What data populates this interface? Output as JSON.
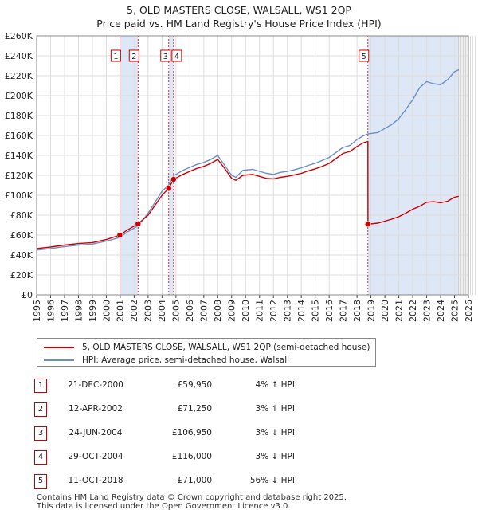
{
  "title": {
    "line1": "5, OLD MASTERS CLOSE, WALSALL, WS1 2QP",
    "line2": "Price paid vs. HM Land Registry's House Price Index (HPI)"
  },
  "legend": {
    "property_label": "5, OLD MASTERS CLOSE, WALSALL, WS1 2QP (semi-detached house)",
    "hpi_label": "HPI: Average price, semi-detached house, Walsall"
  },
  "colors": {
    "property": "#cc0000",
    "hpi": "#6a8fc8",
    "shade": "#dde7f5",
    "grid": "#dddddd"
  },
  "sales": [
    {
      "num": "1",
      "date": "21-DEC-2000",
      "price": "£59,950",
      "hpi": "4% ↑ HPI"
    },
    {
      "num": "2",
      "date": "12-APR-2002",
      "price": "£71,250",
      "hpi": "3% ↑ HPI"
    },
    {
      "num": "3",
      "date": "24-JUN-2004",
      "price": "£106,950",
      "hpi": "3% ↓ HPI"
    },
    {
      "num": "4",
      "date": "29-OCT-2004",
      "price": "£116,000",
      "hpi": "3% ↓ HPI"
    },
    {
      "num": "5",
      "date": "11-OCT-2018",
      "price": "£71,000",
      "hpi": "56% ↓ HPI"
    }
  ],
  "footer": {
    "line1": "Contains HM Land Registry data © Crown copyright and database right 2025.",
    "line2": "This data is licensed under the Open Government Licence v3.0."
  },
  "chart_data": {
    "type": "line",
    "title": "5, OLD MASTERS CLOSE, WALSALL, WS1 2QP — Price paid vs. HM Land Registry's House Price Index (HPI)",
    "xlabel": "",
    "ylabel": "",
    "xlim": [
      1995,
      2026
    ],
    "ylim": [
      0,
      260000
    ],
    "y_ticks": [
      0,
      20000,
      40000,
      60000,
      80000,
      100000,
      120000,
      140000,
      160000,
      180000,
      200000,
      220000,
      240000,
      260000
    ],
    "y_tick_labels": [
      "£0",
      "£20K",
      "£40K",
      "£60K",
      "£80K",
      "£100K",
      "£120K",
      "£140K",
      "£160K",
      "£180K",
      "£200K",
      "£220K",
      "£240K",
      "£260K"
    ],
    "x_ticks": [
      1995,
      1996,
      1997,
      1998,
      1999,
      2000,
      2001,
      2002,
      2003,
      2004,
      2005,
      2006,
      2007,
      2008,
      2009,
      2010,
      2011,
      2012,
      2013,
      2014,
      2015,
      2016,
      2017,
      2018,
      2019,
      2020,
      2021,
      2022,
      2023,
      2024,
      2025,
      2026
    ],
    "sale_markers": [
      {
        "label": "1",
        "x": 2000.97,
        "y": 59950
      },
      {
        "label": "2",
        "x": 2002.28,
        "y": 71250
      },
      {
        "label": "3",
        "x": 2004.48,
        "y": 106950
      },
      {
        "label": "4",
        "x": 2004.83,
        "y": 116000
      },
      {
        "label": "5",
        "x": 2018.78,
        "y": 71000
      }
    ],
    "shaded_ranges": [
      [
        2000.97,
        2002.28
      ],
      [
        2004.48,
        2004.83
      ],
      [
        2018.78,
        2025.3
      ]
    ],
    "series": [
      {
        "name": "HPI: Average price, semi-detached house, Walsall",
        "x": [
          1995,
          1996,
          1997,
          1998,
          1999,
          2000,
          2000.97,
          2001.5,
          2002.28,
          2003,
          2003.5,
          2004,
          2004.48,
          2004.83,
          2005.5,
          2006,
          2006.5,
          2007,
          2007.5,
          2008,
          2008.5,
          2009,
          2009.3,
          2009.8,
          2010.5,
          2011,
          2011.5,
          2012,
          2012.5,
          2013,
          2013.5,
          2014,
          2014.5,
          2015,
          2015.5,
          2016,
          2016.5,
          2017,
          2017.5,
          2018,
          2018.5,
          2018.78,
          2019.5,
          2020,
          2020.5,
          2021,
          2021.5,
          2022,
          2022.5,
          2023,
          2023.5,
          2024,
          2024.5,
          2025,
          2025.3
        ],
        "values": [
          45000,
          46500,
          48500,
          50000,
          51000,
          54000,
          57700,
          63000,
          69200,
          82000,
          93000,
          104000,
          110300,
          119600,
          125000,
          128000,
          131000,
          133000,
          136000,
          140000,
          130000,
          120000,
          118000,
          125000,
          126000,
          124000,
          122000,
          121000,
          123000,
          124000,
          125500,
          127500,
          130000,
          132000,
          135000,
          138000,
          143000,
          148000,
          150000,
          156000,
          160000,
          161500,
          163000,
          167000,
          171000,
          177000,
          186000,
          196000,
          208000,
          214000,
          212000,
          211000,
          216000,
          224000,
          226000
        ]
      },
      {
        "name": "5, OLD MASTERS CLOSE, WALSALL, WS1 2QP (semi-detached house)",
        "x": [
          1995,
          1996,
          1997,
          1998,
          1999,
          2000,
          2000.97,
          2001.5,
          2002.28,
          2003,
          2003.5,
          2004,
          2004.48,
          2004.83,
          2005.5,
          2006,
          2006.5,
          2007,
          2007.5,
          2008,
          2008.5,
          2009,
          2009.3,
          2009.8,
          2010.5,
          2011,
          2011.5,
          2012,
          2012.5,
          2013,
          2013.5,
          2014,
          2014.5,
          2015,
          2015.5,
          2016,
          2016.5,
          2017,
          2017.5,
          2018,
          2018.5,
          2018.78,
          2018.79,
          2019.5,
          2020,
          2020.5,
          2021,
          2021.5,
          2022,
          2022.5,
          2023,
          2023.5,
          2024,
          2024.5,
          2025,
          2025.3
        ],
        "values": [
          46500,
          48000,
          50000,
          51500,
          52500,
          55500,
          59950,
          65000,
          71250,
          80000,
          90000,
          100000,
          106950,
          116000,
          121000,
          124000,
          127000,
          129000,
          132000,
          136000,
          127000,
          117000,
          115000,
          120000,
          121000,
          119000,
          117000,
          116500,
          118000,
          119000,
          120500,
          122000,
          124500,
          126500,
          129000,
          132000,
          137000,
          142000,
          144000,
          149000,
          153000,
          154000,
          71000,
          72000,
          74000,
          76000,
          78500,
          82000,
          86000,
          89000,
          93000,
          93500,
          92500,
          94000,
          98000,
          99000
        ]
      }
    ]
  }
}
